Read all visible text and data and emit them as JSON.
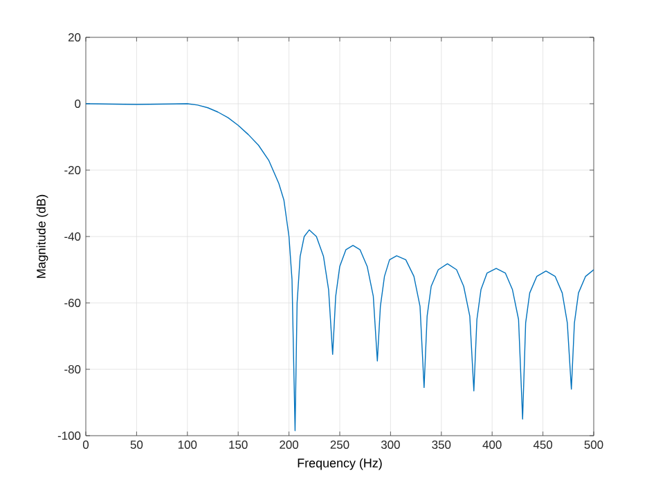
{
  "chart_data": {
    "type": "line",
    "xlabel": "Frequency (Hz)",
    "ylabel": "Magnitude (dB)",
    "xlim": [
      0,
      500
    ],
    "ylim": [
      -100,
      20
    ],
    "xticks": [
      0,
      50,
      100,
      150,
      200,
      250,
      300,
      350,
      400,
      450,
      500
    ],
    "yticks": [
      -100,
      -80,
      -60,
      -40,
      -20,
      0,
      20
    ],
    "grid": true,
    "line_style": "solid",
    "marker": "none",
    "series": [
      {
        "color": "#0072bd",
        "x": [
          0,
          25,
          50,
          75,
          100,
          110,
          120,
          130,
          140,
          150,
          160,
          170,
          180,
          190,
          195,
          200,
          203,
          206,
          208,
          211,
          215,
          220,
          227,
          234,
          239,
          243,
          246,
          250,
          256,
          263,
          270,
          277,
          283,
          287,
          290,
          294,
          299,
          306,
          315,
          323,
          329,
          333,
          336,
          340,
          347,
          356,
          365,
          372,
          378,
          382,
          385,
          389,
          395,
          404,
          413,
          420,
          426,
          430,
          433,
          437,
          444,
          453,
          462,
          469,
          474,
          478,
          481,
          485,
          492,
          500
        ],
        "values": [
          0,
          -0.1,
          -0.2,
          -0.1,
          0,
          -0.4,
          -1.2,
          -2.5,
          -4.2,
          -6.5,
          -9.3,
          -12.5,
          -17,
          -24,
          -29,
          -40,
          -53,
          -98.5,
          -60,
          -46,
          -40,
          -38,
          -40,
          -46,
          -56,
          -75.5,
          -58,
          -49,
          -44,
          -42.7,
          -44,
          -49,
          -58,
          -77.5,
          -61,
          -52,
          -47,
          -45.8,
          -47,
          -52,
          -61,
          -85.5,
          -64,
          -55,
          -50,
          -48.2,
          -50,
          -55,
          -64,
          -86.5,
          -65,
          -56,
          -51,
          -49.6,
          -51,
          -56,
          -65,
          -95,
          -66,
          -57,
          -52,
          -50.4,
          -52,
          -57,
          -66,
          -86,
          -66,
          -57,
          -52,
          -50
        ]
      }
    ]
  }
}
